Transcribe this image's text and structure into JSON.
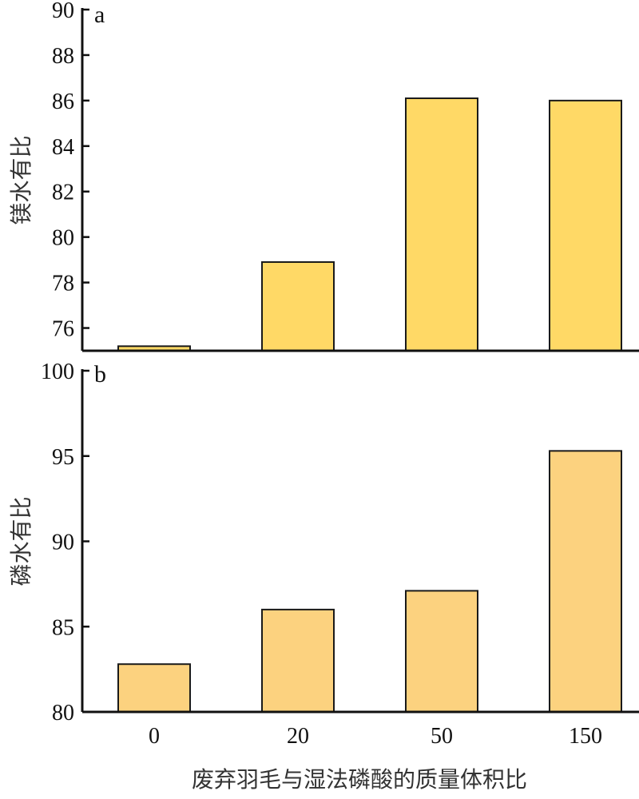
{
  "chart_data": [
    {
      "panel_label": "a",
      "type": "bar",
      "categories": [
        "0",
        "20",
        "50",
        "150"
      ],
      "values": [
        75.2,
        78.9,
        86.1,
        86.0
      ],
      "ylabel": "镁水有比",
      "ylim": [
        75,
        90
      ],
      "yticks": [
        76,
        78,
        80,
        82,
        84,
        86,
        88,
        90
      ],
      "bar_color": "#FFD966",
      "grid": false
    },
    {
      "panel_label": "b",
      "type": "bar",
      "categories": [
        "0",
        "20",
        "50",
        "150"
      ],
      "values": [
        82.8,
        86.0,
        87.1,
        95.3
      ],
      "ylabel": "磷水有比",
      "ylim": [
        80,
        100
      ],
      "yticks": [
        80,
        85,
        90,
        95,
        100
      ],
      "bar_color": "#FCD27F",
      "grid": false
    }
  ],
  "xlabel": "废弃羽毛与湿法磷酸的质量体积比"
}
